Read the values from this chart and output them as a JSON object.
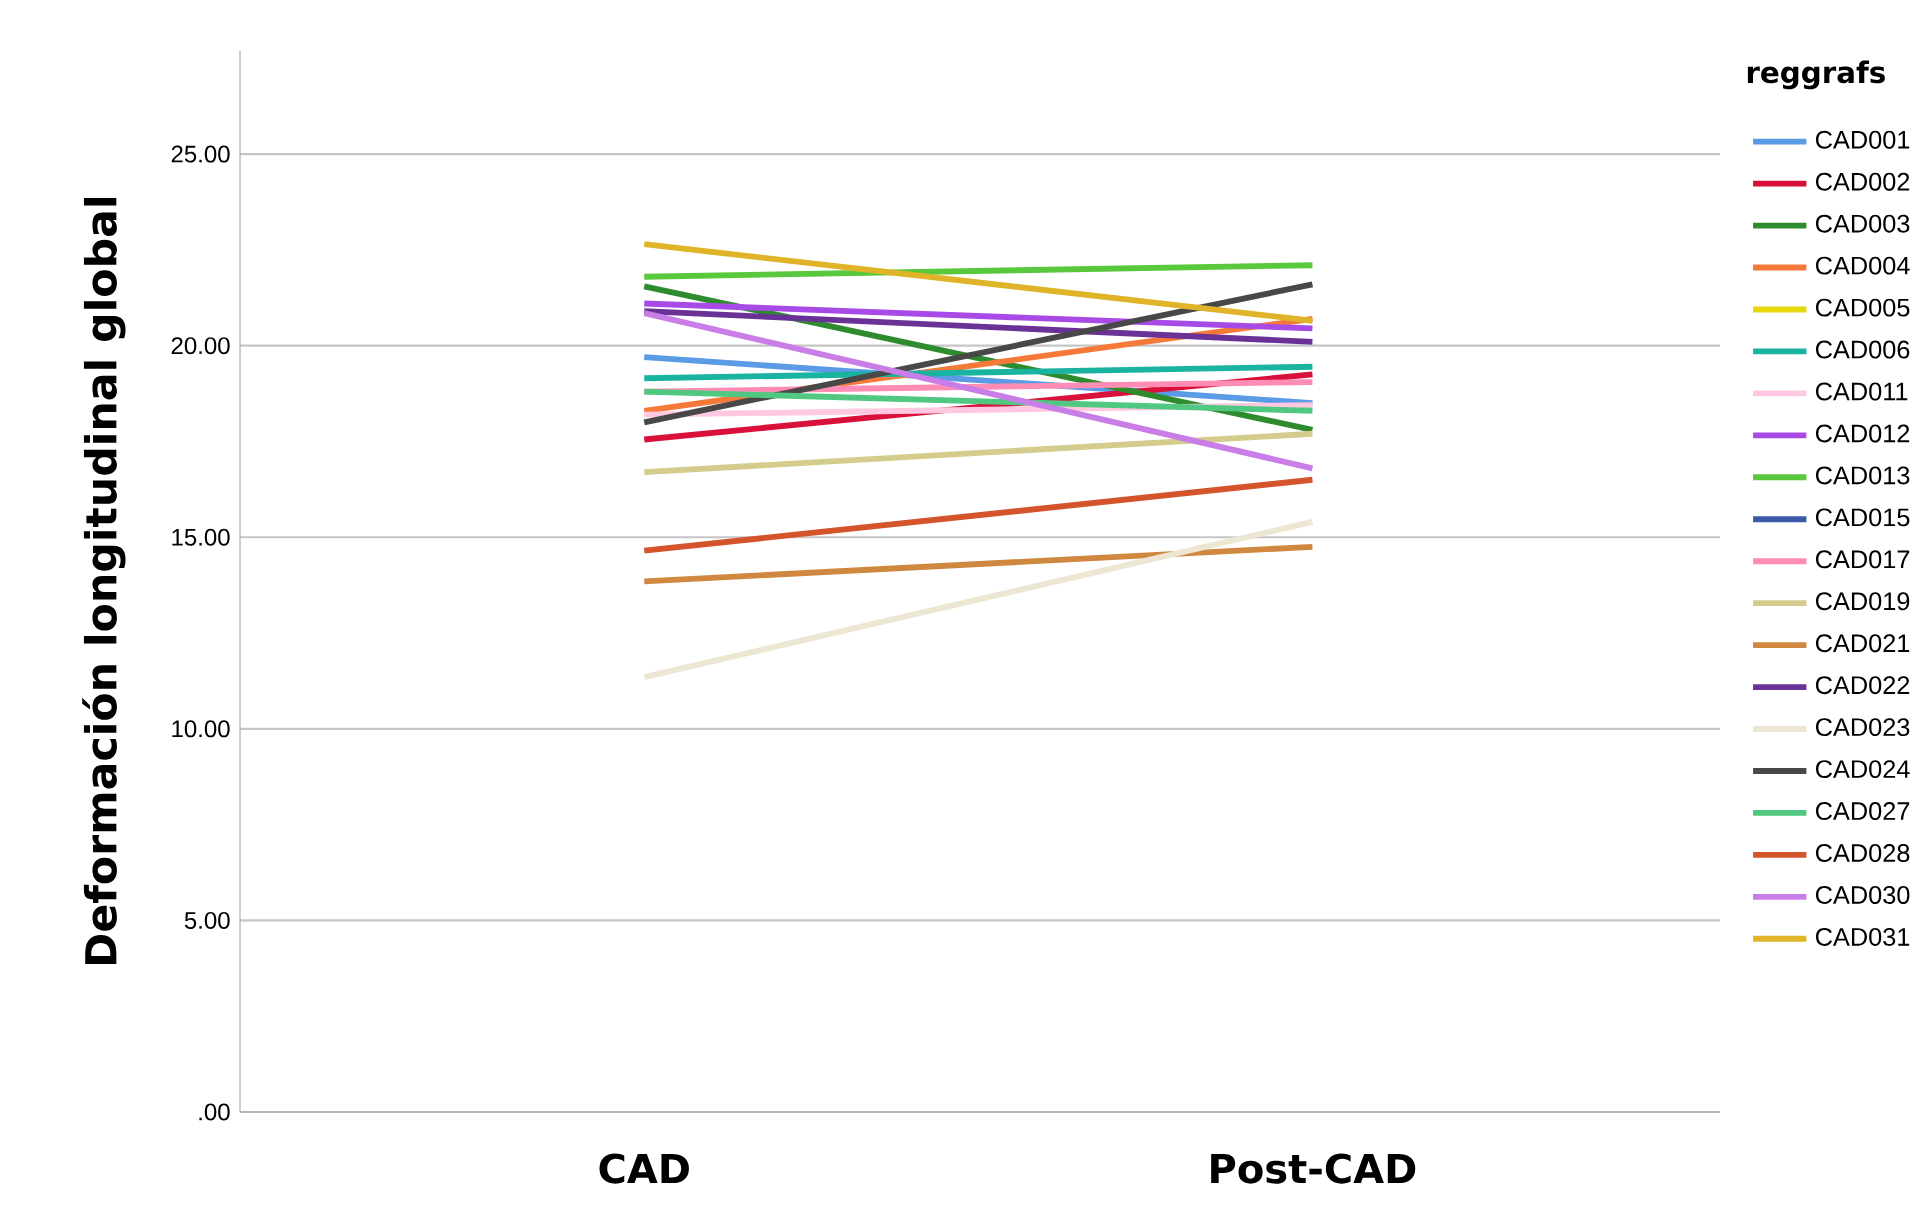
{
  "chart_data": {
    "type": "line",
    "ylabel": "Deformación longitudinal global",
    "legend_title": "reggrafs",
    "legend": "right",
    "grid": "y",
    "marker": "none",
    "line_style": "solid",
    "categories": [
      "CAD",
      "Post-CAD"
    ],
    "ylim": [
      0,
      27.7
    ],
    "yticks": [
      {
        "value": 0,
        "label": ".00"
      },
      {
        "value": 5,
        "label": "5.00"
      },
      {
        "value": 10,
        "label": "10.00"
      },
      {
        "value": 15,
        "label": "15.00"
      },
      {
        "value": 20,
        "label": "20.00"
      },
      {
        "value": 25,
        "label": "25.00"
      }
    ],
    "series": [
      {
        "name": "CAD001",
        "color": "#5b9be6",
        "values": [
          19.7,
          18.5
        ]
      },
      {
        "name": "CAD002",
        "color": "#d8103a",
        "values": [
          17.55,
          19.25
        ]
      },
      {
        "name": "CAD003",
        "color": "#2e8b2e",
        "values": [
          21.55,
          17.8
        ]
      },
      {
        "name": "CAD004",
        "color": "#f57a3a",
        "values": [
          18.3,
          20.7
        ]
      },
      {
        "name": "CAD005",
        "color": "#e6d80a",
        "values": [
          null,
          null
        ]
      },
      {
        "name": "CAD006",
        "color": "#1ab3a0",
        "values": [
          19.15,
          19.45
        ]
      },
      {
        "name": "CAD011",
        "color": "#ffc8e0",
        "values": [
          18.2,
          18.45
        ]
      },
      {
        "name": "CAD012",
        "color": "#a84be6",
        "values": [
          21.1,
          20.45
        ]
      },
      {
        "name": "CAD013",
        "color": "#5ac83c",
        "values": [
          21.8,
          22.1
        ]
      },
      {
        "name": "CAD015",
        "color": "#3a5aa8",
        "values": [
          null,
          null
        ]
      },
      {
        "name": "CAD017",
        "color": "#ff8cb4",
        "values": [
          18.8,
          19.05
        ]
      },
      {
        "name": "CAD019",
        "color": "#d4cc8c",
        "values": [
          16.7,
          17.7
        ]
      },
      {
        "name": "CAD021",
        "color": "#d08840",
        "values": [
          13.85,
          14.75
        ]
      },
      {
        "name": "CAD022",
        "color": "#6a3296",
        "values": [
          20.9,
          20.1
        ]
      },
      {
        "name": "CAD023",
        "color": "#ece6d2",
        "values": [
          11.35,
          15.4
        ]
      },
      {
        "name": "CAD024",
        "color": "#484848",
        "values": [
          18.0,
          21.6
        ]
      },
      {
        "name": "CAD027",
        "color": "#50c882",
        "values": [
          18.8,
          18.3
        ]
      },
      {
        "name": "CAD028",
        "color": "#d4542c",
        "values": [
          14.65,
          16.5
        ]
      },
      {
        "name": "CAD030",
        "color": "#c87ee6",
        "values": [
          20.85,
          16.8
        ]
      },
      {
        "name": "CAD031",
        "color": "#e0b428",
        "values": [
          22.65,
          20.65
        ]
      }
    ]
  }
}
